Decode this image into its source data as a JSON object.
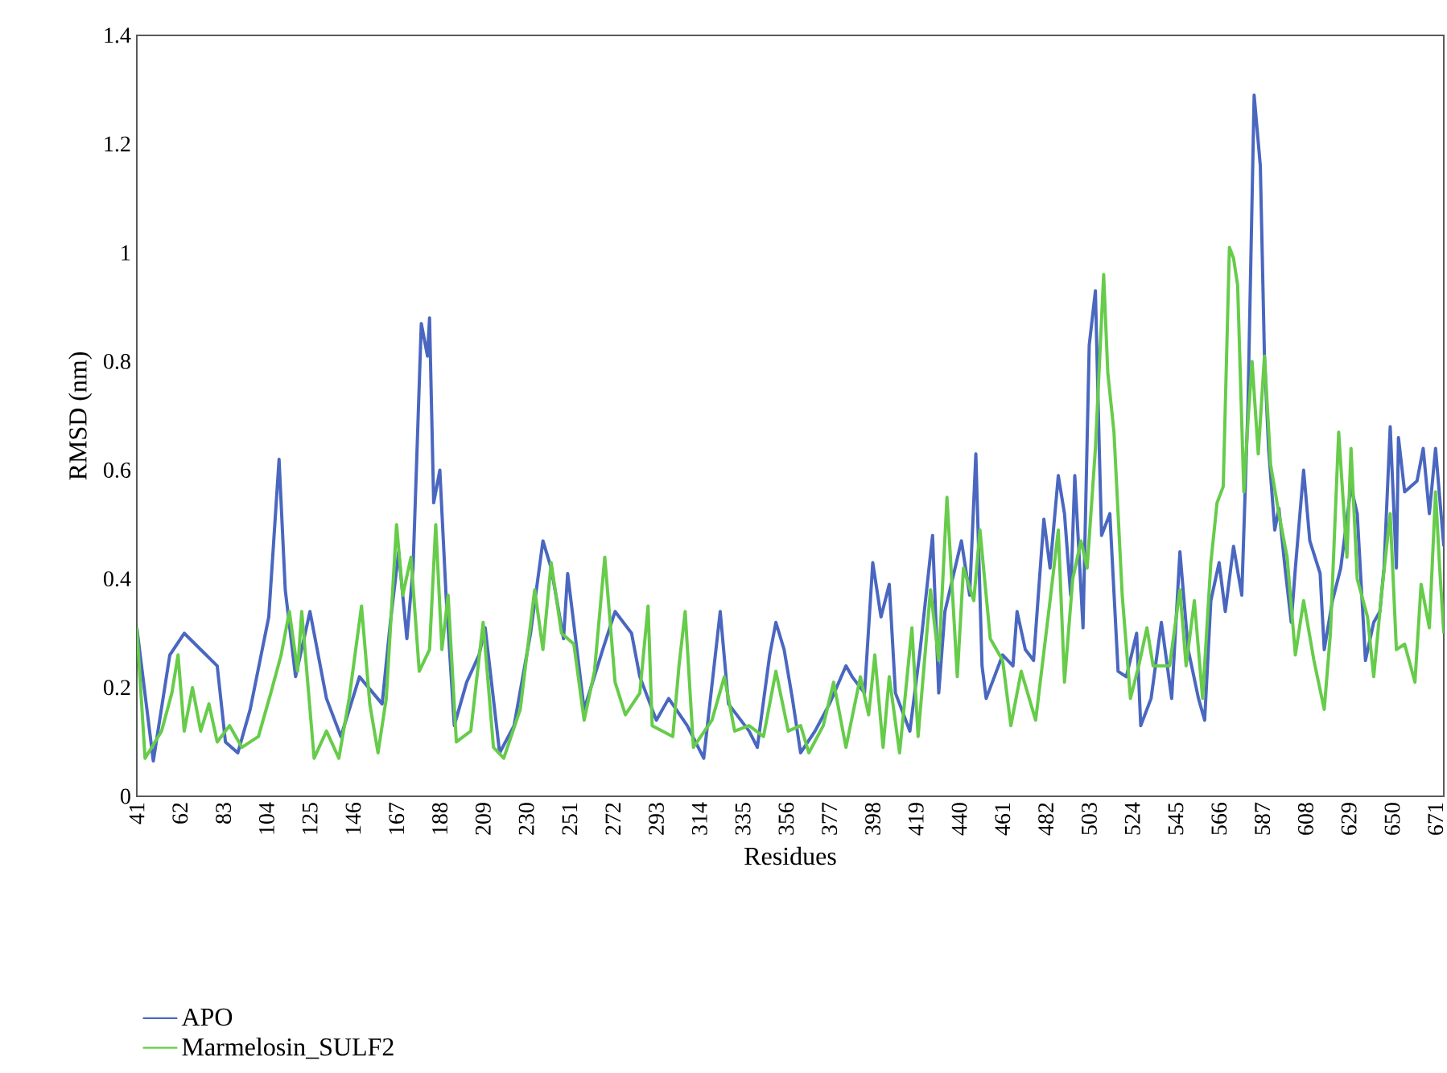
{
  "chart_data": {
    "type": "line",
    "xlabel": "Residues",
    "ylabel": "RMSD (nm)",
    "xlim": [
      41,
      675
    ],
    "xticks": [
      41,
      62,
      83,
      104,
      125,
      146,
      167,
      188,
      209,
      230,
      251,
      272,
      293,
      314,
      335,
      356,
      377,
      398,
      419,
      440,
      461,
      482,
      503,
      524,
      545,
      566,
      587,
      608,
      629,
      650,
      671
    ],
    "ylim": [
      0,
      1.4
    ],
    "yticks": [
      0,
      0.2,
      0.4,
      0.6,
      0.8,
      1,
      1.2,
      1.4
    ],
    "legend": "bottom",
    "series": [
      {
        "name": "APO",
        "color": "#4a67c0",
        "x": [
          41,
          49,
          57,
          64,
          80,
          84,
          90,
          96,
          105,
          110,
          113,
          118,
          125,
          133,
          140,
          149,
          160,
          164,
          168,
          172,
          175,
          179,
          182,
          183,
          185,
          188,
          191,
          195,
          201,
          207,
          210,
          217,
          224,
          232,
          238,
          242,
          248,
          250,
          258,
          267,
          273,
          281,
          285,
          293,
          299,
          308,
          316,
          324,
          328,
          338,
          342,
          348,
          351,
          355,
          359,
          363,
          370,
          377,
          385,
          388,
          394,
          398,
          402,
          406,
          409,
          416,
          421,
          427,
          430,
          433,
          441,
          445,
          448,
          451,
          453,
          461,
          466,
          468,
          472,
          476,
          481,
          484,
          488,
          491,
          494,
          496,
          500,
          503,
          506,
          508,
          509,
          513,
          517,
          521,
          526,
          528,
          533,
          538,
          543,
          547,
          551,
          556,
          559,
          562,
          566,
          569,
          573,
          577,
          580,
          583,
          586,
          588,
          590,
          593,
          595,
          598,
          601,
          603,
          607,
          610,
          615,
          617,
          621,
          625,
          630,
          633,
          637,
          641,
          644,
          646,
          649,
          652,
          653,
          656,
          662,
          665,
          668,
          671,
          673,
          675
        ],
        "values": [
          0.31,
          0.065,
          0.26,
          0.3,
          0.24,
          0.1,
          0.08,
          0.16,
          0.33,
          0.62,
          0.38,
          0.22,
          0.34,
          0.18,
          0.11,
          0.22,
          0.17,
          0.32,
          0.45,
          0.29,
          0.42,
          0.87,
          0.81,
          0.88,
          0.54,
          0.6,
          0.37,
          0.13,
          0.21,
          0.26,
          0.31,
          0.08,
          0.13,
          0.3,
          0.47,
          0.42,
          0.29,
          0.41,
          0.16,
          0.27,
          0.34,
          0.3,
          0.22,
          0.14,
          0.18,
          0.13,
          0.07,
          0.34,
          0.17,
          0.12,
          0.09,
          0.26,
          0.32,
          0.27,
          0.18,
          0.08,
          0.12,
          0.17,
          0.24,
          0.22,
          0.19,
          0.43,
          0.33,
          0.39,
          0.19,
          0.12,
          0.27,
          0.48,
          0.19,
          0.34,
          0.47,
          0.37,
          0.63,
          0.24,
          0.18,
          0.26,
          0.24,
          0.34,
          0.27,
          0.25,
          0.51,
          0.42,
          0.59,
          0.52,
          0.37,
          0.59,
          0.31,
          0.83,
          0.93,
          0.62,
          0.48,
          0.52,
          0.23,
          0.22,
          0.3,
          0.13,
          0.18,
          0.32,
          0.18,
          0.45,
          0.27,
          0.18,
          0.14,
          0.36,
          0.43,
          0.34,
          0.46,
          0.37,
          0.72,
          1.29,
          1.16,
          0.81,
          0.64,
          0.49,
          0.53,
          0.42,
          0.32,
          0.42,
          0.6,
          0.47,
          0.41,
          0.27,
          0.36,
          0.42,
          0.57,
          0.52,
          0.25,
          0.32,
          0.34,
          0.42,
          0.68,
          0.42,
          0.66,
          0.56,
          0.58,
          0.64,
          0.52,
          0.64,
          0.55,
          0.46
        ]
      },
      {
        "name": "Marmelosin_SULF2",
        "color": "#66cc4a",
        "x": [
          41,
          45,
          53,
          58,
          61,
          64,
          68,
          72,
          76,
          80,
          86,
          92,
          100,
          106,
          111,
          115,
          119,
          121,
          127,
          133,
          139,
          144,
          150,
          154,
          158,
          162,
          167,
          170,
          174,
          178,
          183,
          186,
          189,
          192,
          196,
          203,
          209,
          214,
          219,
          227,
          234,
          238,
          242,
          247,
          253,
          258,
          263,
          268,
          273,
          278,
          285,
          289,
          291,
          301,
          304,
          307,
          311,
          320,
          326,
          331,
          338,
          345,
          351,
          357,
          363,
          367,
          374,
          379,
          385,
          392,
          396,
          399,
          403,
          406,
          411,
          417,
          420,
          426,
          430,
          434,
          439,
          442,
          447,
          450,
          455,
          461,
          463,
          465,
          470,
          477,
          484,
          488,
          491,
          495,
          499,
          502,
          506,
          510,
          512,
          515,
          519,
          523,
          527,
          531,
          534,
          542,
          547,
          550,
          554,
          558,
          562,
          565,
          568,
          571,
          573,
          575,
          578,
          580,
          582,
          585,
          588,
          591,
          595,
          599,
          603,
          607,
          612,
          617,
          620,
          624,
          628,
          630,
          633,
          638,
          641,
          645,
          649,
          652,
          656,
          661,
          664,
          668,
          671,
          673,
          675
        ],
        "values": [
          0.31,
          0.07,
          0.12,
          0.19,
          0.26,
          0.12,
          0.2,
          0.12,
          0.17,
          0.1,
          0.13,
          0.09,
          0.11,
          0.19,
          0.26,
          0.34,
          0.23,
          0.34,
          0.07,
          0.12,
          0.07,
          0.18,
          0.35,
          0.17,
          0.08,
          0.18,
          0.5,
          0.37,
          0.44,
          0.23,
          0.27,
          0.5,
          0.27,
          0.37,
          0.1,
          0.12,
          0.32,
          0.09,
          0.07,
          0.16,
          0.38,
          0.27,
          0.43,
          0.3,
          0.28,
          0.14,
          0.23,
          0.44,
          0.21,
          0.15,
          0.19,
          0.35,
          0.13,
          0.11,
          0.24,
          0.34,
          0.09,
          0.14,
          0.22,
          0.12,
          0.13,
          0.11,
          0.23,
          0.12,
          0.13,
          0.08,
          0.13,
          0.21,
          0.09,
          0.22,
          0.15,
          0.26,
          0.09,
          0.22,
          0.08,
          0.31,
          0.11,
          0.38,
          0.25,
          0.55,
          0.22,
          0.42,
          0.36,
          0.49,
          0.29,
          0.25,
          0.19,
          0.13,
          0.23,
          0.14,
          0.36,
          0.49,
          0.21,
          0.4,
          0.47,
          0.42,
          0.64,
          0.96,
          0.78,
          0.67,
          0.37,
          0.18,
          0.24,
          0.31,
          0.24,
          0.24,
          0.38,
          0.24,
          0.36,
          0.18,
          0.43,
          0.54,
          0.57,
          1.01,
          0.99,
          0.94,
          0.56,
          0.69,
          0.8,
          0.63,
          0.81,
          0.61,
          0.52,
          0.44,
          0.26,
          0.36,
          0.25,
          0.16,
          0.3,
          0.67,
          0.44,
          0.64,
          0.4,
          0.33,
          0.22,
          0.38,
          0.52,
          0.27,
          0.28,
          0.21,
          0.39,
          0.31,
          0.56,
          0.42,
          0.3
        ]
      }
    ]
  }
}
